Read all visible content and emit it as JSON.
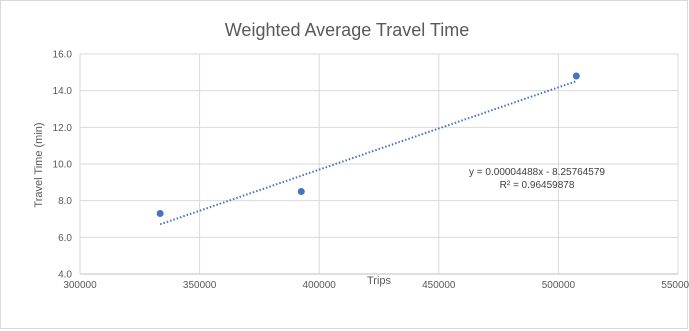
{
  "chart_data": {
    "type": "scatter",
    "title": "Weighted Average Travel Time",
    "xlabel": "Trips",
    "ylabel": "Travel Time (min)",
    "xlim": [
      300000,
      550000
    ],
    "ylim": [
      4.0,
      16.0
    ],
    "x_ticks": [
      "300000",
      "350000",
      "400000",
      "450000",
      "500000",
      "550000"
    ],
    "y_ticks": [
      "4.0",
      "6.0",
      "8.0",
      "10.0",
      "12.0",
      "14.0",
      "16.0"
    ],
    "grid": true,
    "points": [
      {
        "x": 333500,
        "y": 7.3
      },
      {
        "x": 392500,
        "y": 8.5
      },
      {
        "x": 507500,
        "y": 14.8
      }
    ],
    "trendline": {
      "type": "linear",
      "slope": 4.488e-05,
      "intercept": -8.25764579,
      "x_range": [
        333500,
        507500
      ],
      "equation_text": "y = 0.00004488x - 8.25764579",
      "r2_text": "R² = 0.96459878"
    },
    "colors": {
      "marker": "#4472c4",
      "trendline": "#4472c4",
      "grid": "#d9d9d9",
      "text": "#595959"
    }
  }
}
